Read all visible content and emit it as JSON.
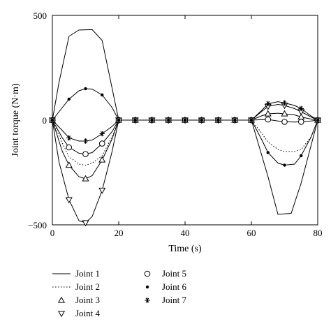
{
  "chart_data": {
    "type": "line",
    "xlabel": "Time (s)",
    "ylabel": "Joint torque (N·m)",
    "xlim": [
      0,
      80
    ],
    "ylim": [
      -500,
      500
    ],
    "xticks": [
      "0",
      "20",
      "40",
      "60",
      "80"
    ],
    "yticks": [
      "500",
      "0",
      "−500"
    ],
    "grid": false,
    "legend_position": "bottom",
    "series": [
      {
        "name": "Joint 1",
        "marker": "line-solid",
        "x": [
          0,
          2,
          5,
          8,
          12,
          15,
          20,
          60,
          65,
          68,
          72,
          75,
          80
        ],
        "y": [
          0,
          180,
          400,
          430,
          432,
          380,
          0,
          0,
          -270,
          -450,
          -445,
          -300,
          0
        ]
      },
      {
        "name": "Joint 2",
        "marker": "line-dotted",
        "x": [
          0,
          3,
          5,
          8,
          10,
          12,
          15,
          18,
          20,
          60,
          63,
          65,
          68,
          70,
          73,
          75,
          78,
          80
        ],
        "y": [
          0,
          -110,
          -175,
          -210,
          -215,
          -205,
          -170,
          -80,
          0,
          0,
          -60,
          -105,
          -140,
          -150,
          -150,
          -140,
          -80,
          0
        ]
      },
      {
        "name": "Joint 3",
        "marker": "triangle-up",
        "x": [
          0,
          3,
          5,
          8,
          10,
          12,
          15,
          18,
          20,
          25,
          30,
          35,
          40,
          45,
          50,
          55,
          60,
          63,
          65,
          68,
          70,
          73,
          75,
          78,
          80
        ],
        "y": [
          0,
          -150,
          -215,
          -270,
          -280,
          -265,
          -190,
          -90,
          0,
          0,
          0,
          0,
          0,
          0,
          0,
          0,
          0,
          20,
          30,
          33,
          30,
          25,
          15,
          5,
          0
        ]
      },
      {
        "name": "Joint 4",
        "marker": "triangle-down",
        "x": [
          0,
          2,
          5,
          8,
          10,
          12,
          15,
          18,
          20,
          25,
          30,
          35,
          40,
          45,
          50,
          55,
          60,
          63,
          65,
          68,
          70,
          73,
          75,
          78,
          80
        ],
        "y": [
          0,
          -200,
          -380,
          -480,
          -490,
          -460,
          -335,
          -150,
          0,
          0,
          0,
          0,
          0,
          0,
          0,
          0,
          0,
          40,
          65,
          75,
          70,
          55,
          40,
          15,
          0
        ]
      },
      {
        "name": "Joint 5",
        "marker": "circle-open",
        "x": [
          0,
          3,
          5,
          8,
          10,
          12,
          15,
          18,
          20,
          25,
          30,
          35,
          40,
          45,
          50,
          55,
          60,
          63,
          65,
          68,
          70,
          73,
          75,
          78,
          80
        ],
        "y": [
          0,
          -85,
          -130,
          -158,
          -162,
          -155,
          -112,
          -55,
          0,
          0,
          0,
          0,
          0,
          0,
          0,
          0,
          0,
          2,
          3,
          -4,
          -8,
          -9,
          -8,
          -4,
          0
        ]
      },
      {
        "name": "Joint 6",
        "marker": "dot-filled",
        "x": [
          0,
          3,
          5,
          8,
          10,
          12,
          15,
          18,
          20,
          25,
          30,
          35,
          40,
          45,
          50,
          55,
          60,
          63,
          65,
          68,
          70,
          73,
          75,
          78,
          80
        ],
        "y": [
          0,
          60,
          100,
          140,
          150,
          148,
          120,
          60,
          0,
          0,
          0,
          0,
          0,
          0,
          0,
          0,
          0,
          -90,
          -155,
          -205,
          -215,
          -210,
          -170,
          -80,
          0
        ]
      },
      {
        "name": "Joint 7",
        "marker": "asterisk",
        "x": [
          0,
          3,
          5,
          8,
          10,
          12,
          15,
          18,
          20,
          25,
          30,
          35,
          40,
          45,
          50,
          55,
          60,
          63,
          65,
          68,
          70,
          73,
          75,
          78,
          80
        ],
        "y": [
          0,
          -50,
          -85,
          -100,
          -100,
          -95,
          -65,
          -30,
          0,
          0,
          0,
          0,
          0,
          0,
          0,
          0,
          0,
          45,
          78,
          88,
          82,
          70,
          55,
          20,
          0
        ]
      }
    ],
    "marked_x": [
      0,
      5,
      10,
      15,
      20,
      25,
      30,
      35,
      40,
      45,
      50,
      55,
      60,
      65,
      70,
      75,
      80
    ]
  }
}
